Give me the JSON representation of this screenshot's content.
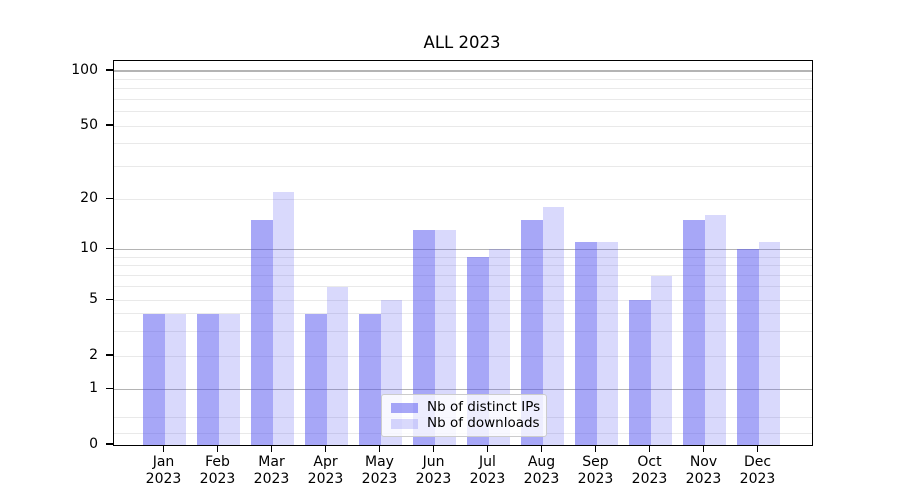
{
  "chart_data": {
    "type": "bar",
    "title": "ALL 2023",
    "categories": [
      "Jan",
      "Feb",
      "Mar",
      "Apr",
      "May",
      "Jun",
      "Jul",
      "Aug",
      "Sep",
      "Oct",
      "Nov",
      "Dec"
    ],
    "year_label": "2023",
    "series": [
      {
        "name": "Nb of distinct IPs",
        "color": "rgba(80,80,240,0.5)",
        "values": [
          4,
          4,
          15,
          4,
          4,
          13,
          9,
          15,
          11,
          5,
          15,
          10
        ]
      },
      {
        "name": "Nb of downloads",
        "color": "rgba(80,80,240,0.22)",
        "values": [
          4,
          4,
          22,
          6,
          5,
          13,
          10,
          18,
          11,
          7,
          16,
          11
        ]
      }
    ],
    "yscale": "symlog",
    "ylim": [
      0,
      110
    ],
    "y_ticks": [
      0,
      1,
      2,
      5,
      10,
      20,
      50,
      100
    ],
    "grid_major": [
      1,
      10,
      100
    ],
    "grid_minor": [
      0.2,
      0.5,
      2,
      3,
      4,
      5,
      6,
      7,
      8,
      9,
      20,
      30,
      40,
      50,
      60,
      70,
      80,
      90
    ],
    "legend": {
      "labels": [
        "Nb of distinct IPs",
        "Nb of downloads"
      ],
      "position": "lower center"
    },
    "colors": {
      "major_grid": "#b4b4b4",
      "minor_grid": "#e9e9e9",
      "spine": "#000000",
      "bar_base": "#5050f0"
    }
  }
}
